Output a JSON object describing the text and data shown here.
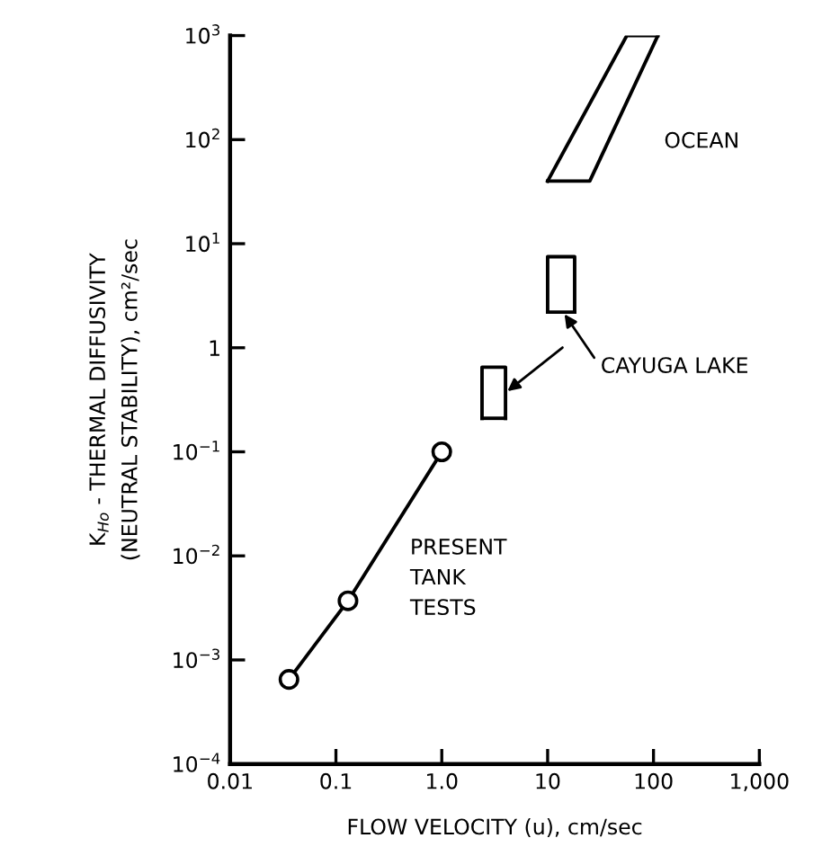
{
  "chart_data": {
    "type": "line",
    "xlabel": "FLOW VELOCITY (u), cm/sec",
    "ylabel": "K$_{Ho}$ - THERMAL DIFFUSIVITY\n(NEUTRAL STABILITY), cm²/sec",
    "log": "xy",
    "xlim": [
      0.01,
      1000
    ],
    "ylim": [
      0.0001,
      1000
    ],
    "xticks": [
      0.01,
      0.1,
      {
        "value": 1,
        "label": "1.0"
      },
      10,
      100,
      {
        "value": 1000,
        "label": "1,000"
      }
    ],
    "yticks": [
      {
        "value": 0.0001,
        "label": "10$^{−4}$"
      },
      {
        "value": 0.001,
        "label": "10$^{−3}$"
      },
      {
        "value": 0.01,
        "label": "10$^{−2}$"
      },
      {
        "value": 0.1,
        "label": "10$^{−1}$"
      },
      {
        "value": 1,
        "label": "1"
      },
      {
        "value": 10,
        "label": "10$^{1}$"
      },
      {
        "value": 100,
        "label": "10$^{2}$"
      },
      {
        "value": 1000,
        "label": "10$^{3}$"
      }
    ],
    "series": [
      {
        "color": "#000000",
        "marker": "circle",
        "x": [
          0.036,
          0.13,
          1.0
        ],
        "values": [
          0.00065,
          0.0037,
          0.1
        ]
      },
      {
        "type": "line",
        "color": "#000000",
        "x": [
          10,
          25,
          110
        ],
        "values": [
          40,
          40,
          1000
        ]
      },
      {
        "type": "line",
        "color": "#000000",
        "x": [
          10,
          10,
          18,
          18
        ],
        "values": [
          2.2,
          7.5,
          7.5,
          2.2
        ]
      },
      {
        "type": "line",
        "color": "#000000",
        "x": [
          2.4,
          2.4,
          4.0,
          4.0
        ],
        "values": [
          0.21,
          0.65,
          0.65,
          0.21
        ]
      },
      {
        "type": "line",
        "color": "#000000",
        "x": [
          10,
          56,
          110
        ],
        "values": [
          40,
          1000,
          1000
        ]
      },
      {
        "type": "line",
        "color": "#000000",
        "x": [
          10,
          18
        ],
        "values": [
          2.2,
          2.2
        ]
      },
      {
        "type": "line",
        "color": "#000000",
        "x": [
          2.4,
          4.0
        ],
        "values": [
          0.21,
          0.21
        ]
      }
    ],
    "annotations": [
      "OCEAN",
      {
        "text": "CAYUGA LAKE",
        "x": 14,
        "y": 2.2
      },
      "PRESENT\nTANK\nTESTS"
    ]
  }
}
